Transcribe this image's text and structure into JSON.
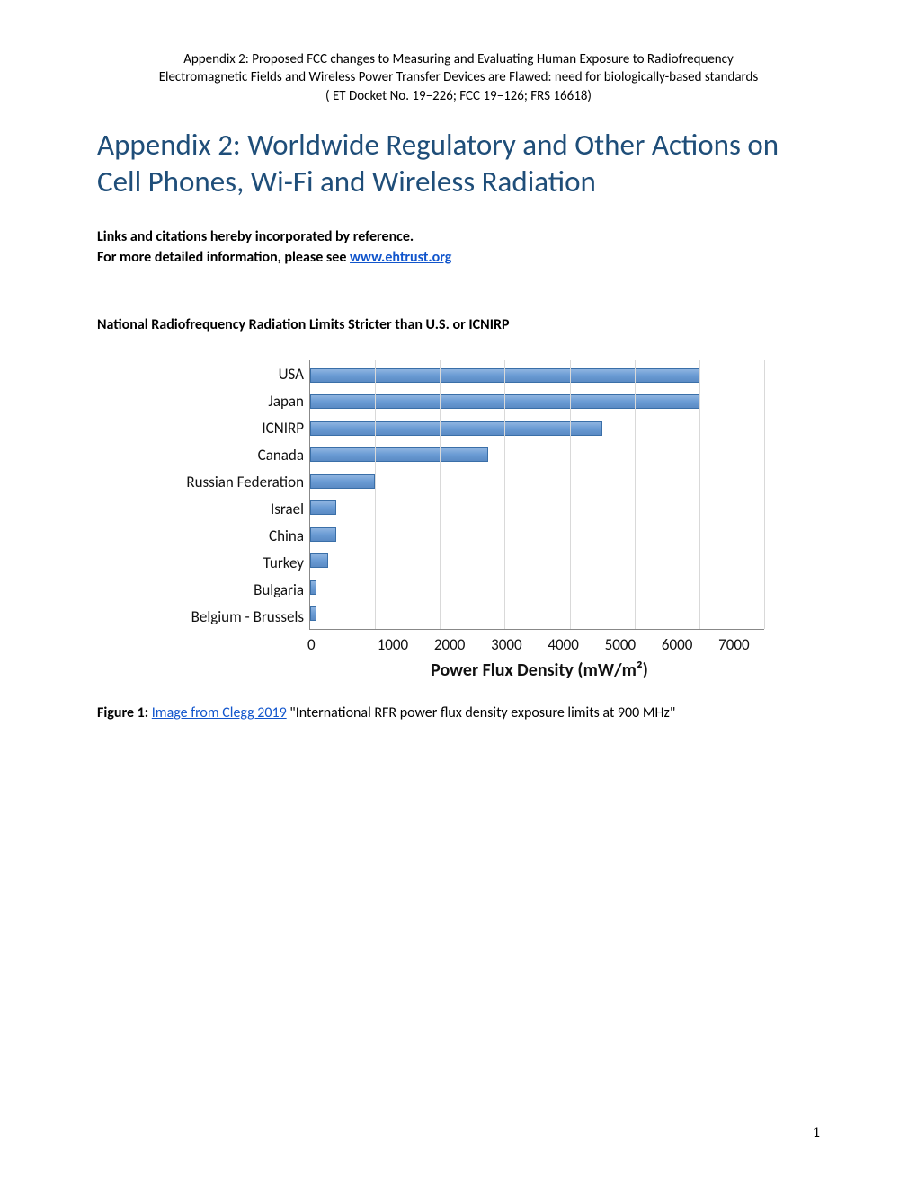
{
  "header": {
    "line1": "Appendix 2: Proposed FCC changes to Measuring and Evaluating Human Exposure to Radiofrequency",
    "line2": "Electromagnetic Fields and Wireless Power Transfer Devices are Flawed:  need for biologically-based standards",
    "line3": "( ET Docket No. 19–226; FCC 19–126; FRS 16618)"
  },
  "title": "Appendix 2: Worldwide Regulatory and Other Actions on Cell Phones, Wi-Fi and Wireless Radiation",
  "intro": {
    "line1": "Links and citations hereby incorporated by reference.",
    "line2_prefix": "For more detailed information, please see ",
    "link_text": "www.ehtrust.org"
  },
  "section_heading": "National Radiofrequency Radiation Limits Stricter than U.S. or ICNIRP",
  "chart": {
    "type": "bar-horizontal",
    "x_label": "Power Flux Density (mW/m²)",
    "x_max": 7000,
    "x_tick_step": 1000,
    "x_ticks": [
      "0",
      "1000",
      "2000",
      "3000",
      "4000",
      "5000",
      "6000",
      "7000"
    ],
    "bar_fill_top": "#8fb4e0",
    "bar_fill_mid": "#6a9bd4",
    "bar_fill_bot": "#5b8bc4",
    "bar_border": "#3a6fa8",
    "grid_color": "#d9d9d9",
    "axis_color": "#888888",
    "label_fontsize": 17,
    "xlabel_fontsize": 20,
    "categories": [
      "USA",
      "Japan",
      "ICNIRP",
      "Canada",
      "Russian Federation",
      "Israel",
      "China",
      "Turkey",
      "Bulgaria",
      "Belgium - Brussels"
    ],
    "values": [
      6000,
      6000,
      4500,
      2740,
      1000,
      400,
      400,
      280,
      100,
      95
    ]
  },
  "caption": {
    "label": "Figure 1: ",
    "link": "Image from Clegg 2019",
    "rest": "  \"International RFR power flux density exposure limits at 900 MHz\""
  },
  "page_number": "1"
}
